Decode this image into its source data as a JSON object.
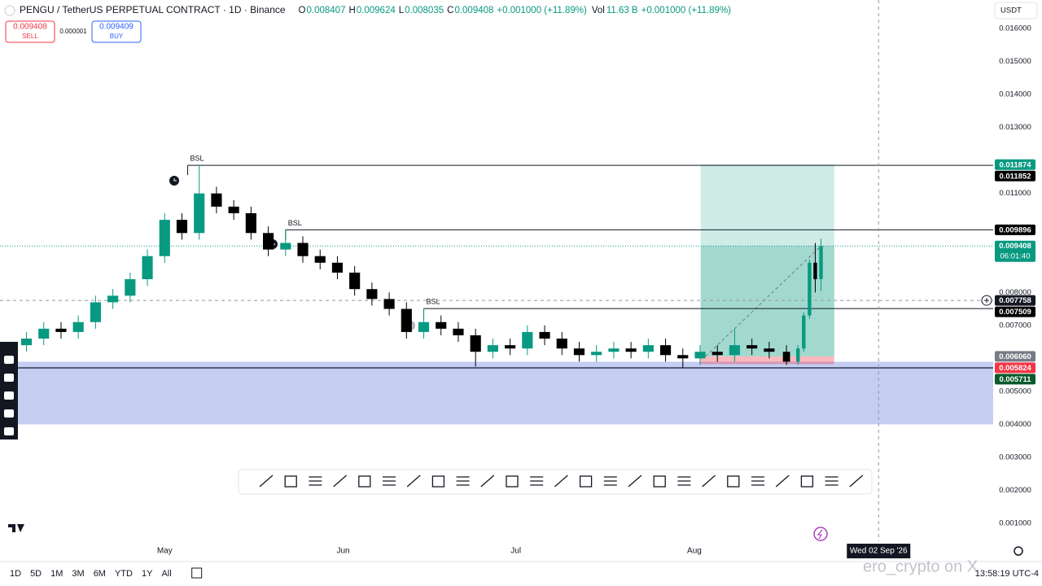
{
  "header": {
    "symbol": "PENGU / TetherUS PERPETUAL CONTRACT · 1D · Binance",
    "ohlc": [
      {
        "k": "O",
        "v": "0.008407"
      },
      {
        "k": "H",
        "v": "0.009624"
      },
      {
        "k": "L",
        "v": "0.008035"
      },
      {
        "k": "C",
        "v": "0.009408"
      }
    ],
    "change": "+0.001000 (+11.89%)",
    "vol_label": "Vol",
    "vol": "11.63 B",
    "vol_change": "+0.001000 (+11.89%)"
  },
  "trade": {
    "sell_price": "0.009408",
    "sell": "SELL",
    "spread": "0.000001",
    "buy_price": "0.009409",
    "buy": "BUY"
  },
  "currency": "USDT",
  "timeframes": [
    "1D",
    "5D",
    "1M",
    "3M",
    "6M",
    "YTD",
    "1Y",
    "All"
  ],
  "clock": "13:58:19 UTC-4",
  "watermark": "ero_crypto on X",
  "chart_data": {
    "type": "candlestick",
    "up_color": "#089981",
    "down_color": "#000000",
    "grid": false,
    "x": [
      -24,
      -21,
      -18,
      -15,
      -12,
      -9,
      -6,
      -3,
      0,
      3,
      6,
      9,
      12,
      15,
      18,
      21,
      24,
      27,
      30,
      33,
      36,
      39,
      42,
      45,
      48,
      51,
      54,
      57,
      60,
      63,
      66,
      69,
      72,
      75,
      78,
      81,
      84,
      87,
      90,
      93,
      96,
      99,
      102,
      105,
      108,
      110,
      111,
      112,
      113,
      114
    ],
    "open": [
      0.0064,
      0.0066,
      0.0069,
      0.0068,
      0.0071,
      0.0077,
      0.0079,
      0.0084,
      0.0091,
      0.0102,
      0.0098,
      0.011,
      0.0106,
      0.0104,
      0.0098,
      0.0093,
      0.0095,
      0.0091,
      0.0089,
      0.0086,
      0.0081,
      0.0078,
      0.0075,
      0.0068,
      0.0071,
      0.0069,
      0.0067,
      0.0062,
      0.0064,
      0.0063,
      0.0068,
      0.0066,
      0.0063,
      0.0061,
      0.0062,
      0.0063,
      0.0062,
      0.0064,
      0.0061,
      0.006,
      0.0062,
      0.0061,
      0.0064,
      0.0063,
      0.0062,
      0.0059,
      0.0063,
      0.0073,
      0.0089,
      0.008407
    ],
    "high": [
      0.0068,
      0.0071,
      0.0071,
      0.0073,
      0.0079,
      0.0081,
      0.0086,
      0.0093,
      0.0104,
      0.0104,
      0.011852,
      0.0112,
      0.0108,
      0.0106,
      0.01,
      0.009896,
      0.0097,
      0.0093,
      0.0091,
      0.0088,
      0.0083,
      0.008,
      0.0077,
      0.007509,
      0.0073,
      0.0071,
      0.0069,
      0.0066,
      0.0066,
      0.007,
      0.007,
      0.0068,
      0.0065,
      0.0064,
      0.0065,
      0.0065,
      0.0066,
      0.0066,
      0.0063,
      0.0064,
      0.0064,
      0.0069,
      0.0066,
      0.0065,
      0.0064,
      0.0064,
      0.0074,
      0.009,
      0.0095,
      0.009624
    ],
    "low": [
      0.0062,
      0.0064,
      0.0066,
      0.0066,
      0.0069,
      0.0075,
      0.0077,
      0.0082,
      0.0089,
      0.0096,
      0.0096,
      0.0104,
      0.0102,
      0.0096,
      0.0091,
      0.0091,
      0.0089,
      0.0087,
      0.0084,
      0.0079,
      0.0076,
      0.0073,
      0.0066,
      0.0066,
      0.0067,
      0.0065,
      0.00575,
      0.006,
      0.0061,
      0.0061,
      0.0064,
      0.0061,
      0.0059,
      0.0059,
      0.006,
      0.006,
      0.006,
      0.0059,
      0.005711,
      0.0058,
      0.0059,
      0.0059,
      0.0061,
      0.006,
      0.0058,
      0.0058,
      0.0062,
      0.0072,
      0.008,
      0.008035
    ],
    "close": [
      0.0066,
      0.0069,
      0.0068,
      0.0071,
      0.0077,
      0.0079,
      0.0084,
      0.0091,
      0.0102,
      0.0098,
      0.011,
      0.0106,
      0.0104,
      0.0098,
      0.0093,
      0.0095,
      0.0091,
      0.0089,
      0.0086,
      0.0081,
      0.0078,
      0.0075,
      0.0068,
      0.0071,
      0.0069,
      0.0067,
      0.0062,
      0.0064,
      0.0063,
      0.0068,
      0.0066,
      0.0063,
      0.0061,
      0.0062,
      0.0063,
      0.0062,
      0.0064,
      0.0061,
      0.006,
      0.0062,
      0.0061,
      0.0064,
      0.0063,
      0.0062,
      0.0059,
      0.0063,
      0.0073,
      0.0089,
      0.0084,
      0.009408
    ],
    "xlim": [
      -28.6,
      143.9
    ],
    "xticks": [
      {
        "value": 0,
        "label": "May"
      },
      {
        "value": 31,
        "label": "Jun"
      },
      {
        "value": 61,
        "label": "Jul"
      },
      {
        "value": 92,
        "label": "Aug"
      }
    ],
    "ylim": [
      0.000457,
      0.016864
    ],
    "yticks": [
      {
        "value": 0.016,
        "label": "0.016000"
      },
      {
        "value": 0.015,
        "label": "0.015000"
      },
      {
        "value": 0.014,
        "label": "0.014000"
      },
      {
        "value": 0.013,
        "label": "0.013000"
      },
      {
        "value": 0.011,
        "label": "0.011000"
      },
      {
        "value": 0.008,
        "label": "0.008000"
      },
      {
        "value": 0.007,
        "label": "0.007000"
      },
      {
        "value": 0.005,
        "label": "0.005000"
      },
      {
        "value": 0.004,
        "label": "0.004000"
      },
      {
        "value": 0.003,
        "label": "0.003000"
      },
      {
        "value": 0.002,
        "label": "0.002000"
      },
      {
        "value": 0.001,
        "label": "0.001000"
      }
    ],
    "zones": [
      {
        "top": 0.0059,
        "bottom": 0.004,
        "color": "#c5cdf3"
      }
    ],
    "levels": [
      {
        "value": 0.011852,
        "x_start": 4,
        "label": "BSL"
      },
      {
        "value": 0.009896,
        "x_start": 21,
        "label": "BSL"
      },
      {
        "value": 0.007509,
        "x_start": 45,
        "label": "BSL"
      }
    ],
    "hlines": [
      {
        "value": 0.005711,
        "color": "#2b3a55",
        "badge_color": "#0b5a2b"
      }
    ],
    "long_position": {
      "x": [
        93.1,
        116.3
      ],
      "target": 0.011874,
      "entry": {
        "value": 0.00606,
        "label": "0.006060"
      },
      "stop": 0.005824
    },
    "current_price": {
      "value": 0.009408,
      "countdown": "06:01:40",
      "color": "#089981"
    },
    "crosshair": {
      "x": 124,
      "y": 0.007758,
      "label": "Wed 02 Sep '26"
    }
  }
}
